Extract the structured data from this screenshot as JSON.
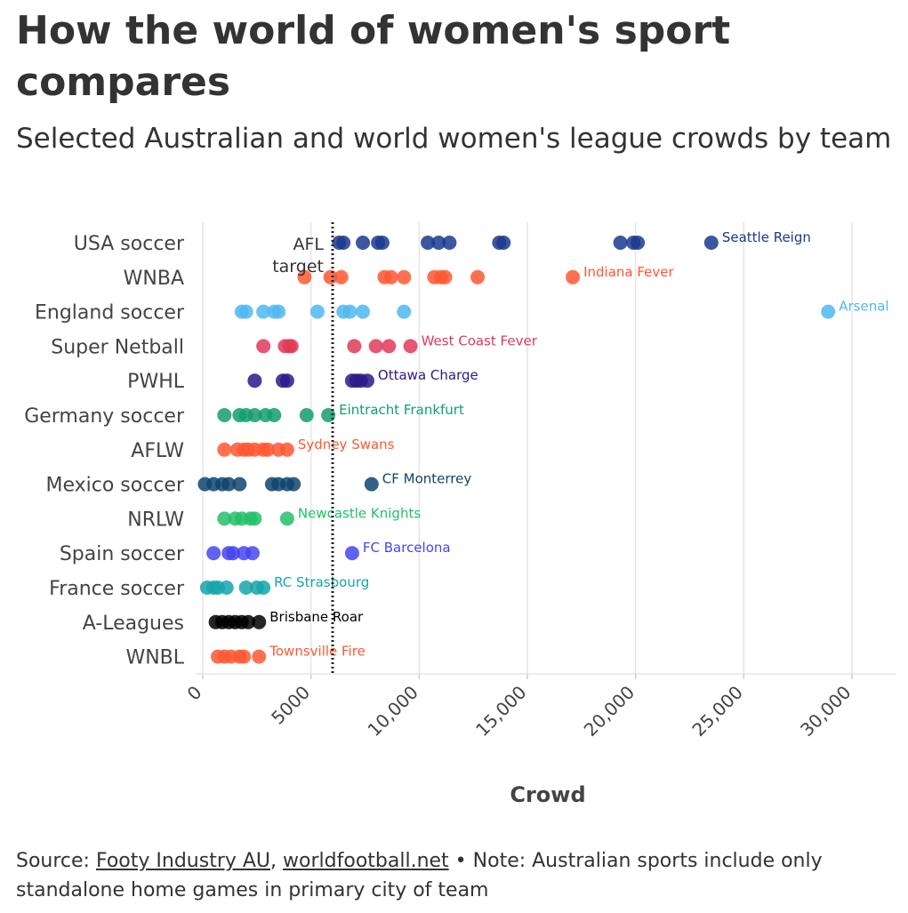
{
  "title": "How the world of women's sport compares",
  "subtitle": "Selected Australian and world women's league crowds by team",
  "source": {
    "prefix": "Source: ",
    "link1": "Footy Industry AU",
    "sep": ", ",
    "link2": "worldfootball.net",
    "note": " • Note: Australian sports include only standalone home games in primary city of team"
  },
  "chart_data": {
    "type": "scatter",
    "xlabel": "Crowd",
    "ylabel": "",
    "xlim": [
      0,
      32000
    ],
    "x_ticks": [
      0,
      5000,
      10000,
      15000,
      20000,
      25000,
      30000
    ],
    "x_tick_labels": [
      "0",
      "5000",
      "10,000",
      "15,000",
      "20,000",
      "25,000",
      "30,000"
    ],
    "grid": "vertical",
    "reference_line": {
      "x": 6000,
      "label": [
        "AFL",
        "target"
      ],
      "style": "dotted"
    },
    "series": [
      {
        "category": "USA soccer",
        "color": "#1a3a8f",
        "highlight": "Seattle Reign",
        "values": [
          6300,
          6500,
          7400,
          8100,
          8300,
          10400,
          10900,
          11400,
          13700,
          13900,
          19300,
          19900,
          20100,
          23500
        ]
      },
      {
        "category": "WNBA",
        "color": "#ff5733",
        "highlight": "Indiana Fever",
        "values": [
          4700,
          5900,
          6400,
          8400,
          8700,
          9300,
          10700,
          11000,
          11200,
          12700,
          17100
        ]
      },
      {
        "category": "England soccer",
        "color": "#4fb8f0",
        "highlight": "Arsenal",
        "values": [
          1800,
          2000,
          2800,
          3300,
          3500,
          5300,
          6500,
          6800,
          7400,
          9300,
          28900
        ]
      },
      {
        "category": "Super Netball",
        "color": "#e0395a",
        "highlight": "West Coast Fever",
        "values": [
          2800,
          3800,
          4000,
          4100,
          7000,
          8000,
          8600,
          9600
        ]
      },
      {
        "category": "PWHL",
        "color": "#2a1a8a",
        "highlight": "Ottawa Charge",
        "values": [
          2400,
          3700,
          3900,
          6900,
          7100,
          7300,
          7600
        ]
      },
      {
        "category": "Germany soccer",
        "color": "#139e6e",
        "highlight": "Eintracht Frankfurt",
        "values": [
          1000,
          1700,
          2000,
          2400,
          2900,
          3300,
          4800,
          5800
        ]
      },
      {
        "category": "AFLW",
        "color": "#ff5733",
        "highlight": "Sydney Swans",
        "values": [
          1000,
          1600,
          1900,
          2100,
          2400,
          2800,
          3000,
          3500,
          3900
        ]
      },
      {
        "category": "Mexico soccer",
        "color": "#0f4470",
        "highlight": "CF Monterrey",
        "values": [
          100,
          500,
          900,
          1200,
          1700,
          3200,
          3500,
          3900,
          4200,
          7800
        ]
      },
      {
        "category": "NRLW",
        "color": "#22c06a",
        "highlight": "Newcastle Knights",
        "values": [
          1000,
          1500,
          1800,
          2200,
          2400,
          3900
        ]
      },
      {
        "category": "Spain soccer",
        "color": "#4545f0",
        "highlight": "FC Barcelona",
        "values": [
          500,
          1200,
          1400,
          1900,
          2300,
          6900
        ]
      },
      {
        "category": "France soccer",
        "color": "#15a5ab",
        "highlight": "RC Strasbourg",
        "values": [
          200,
          500,
          700,
          1100,
          2000,
          2500,
          2800
        ]
      },
      {
        "category": "A-Leagues",
        "color": "#000000",
        "highlight": "Brisbane Roar",
        "values": [
          600,
          900,
          1200,
          1500,
          1800,
          2100,
          2600
        ]
      },
      {
        "category": "WNBL",
        "color": "#ff5733",
        "highlight": "Townsville Fire",
        "values": [
          700,
          1000,
          1300,
          1700,
          1900,
          2600
        ]
      }
    ]
  }
}
